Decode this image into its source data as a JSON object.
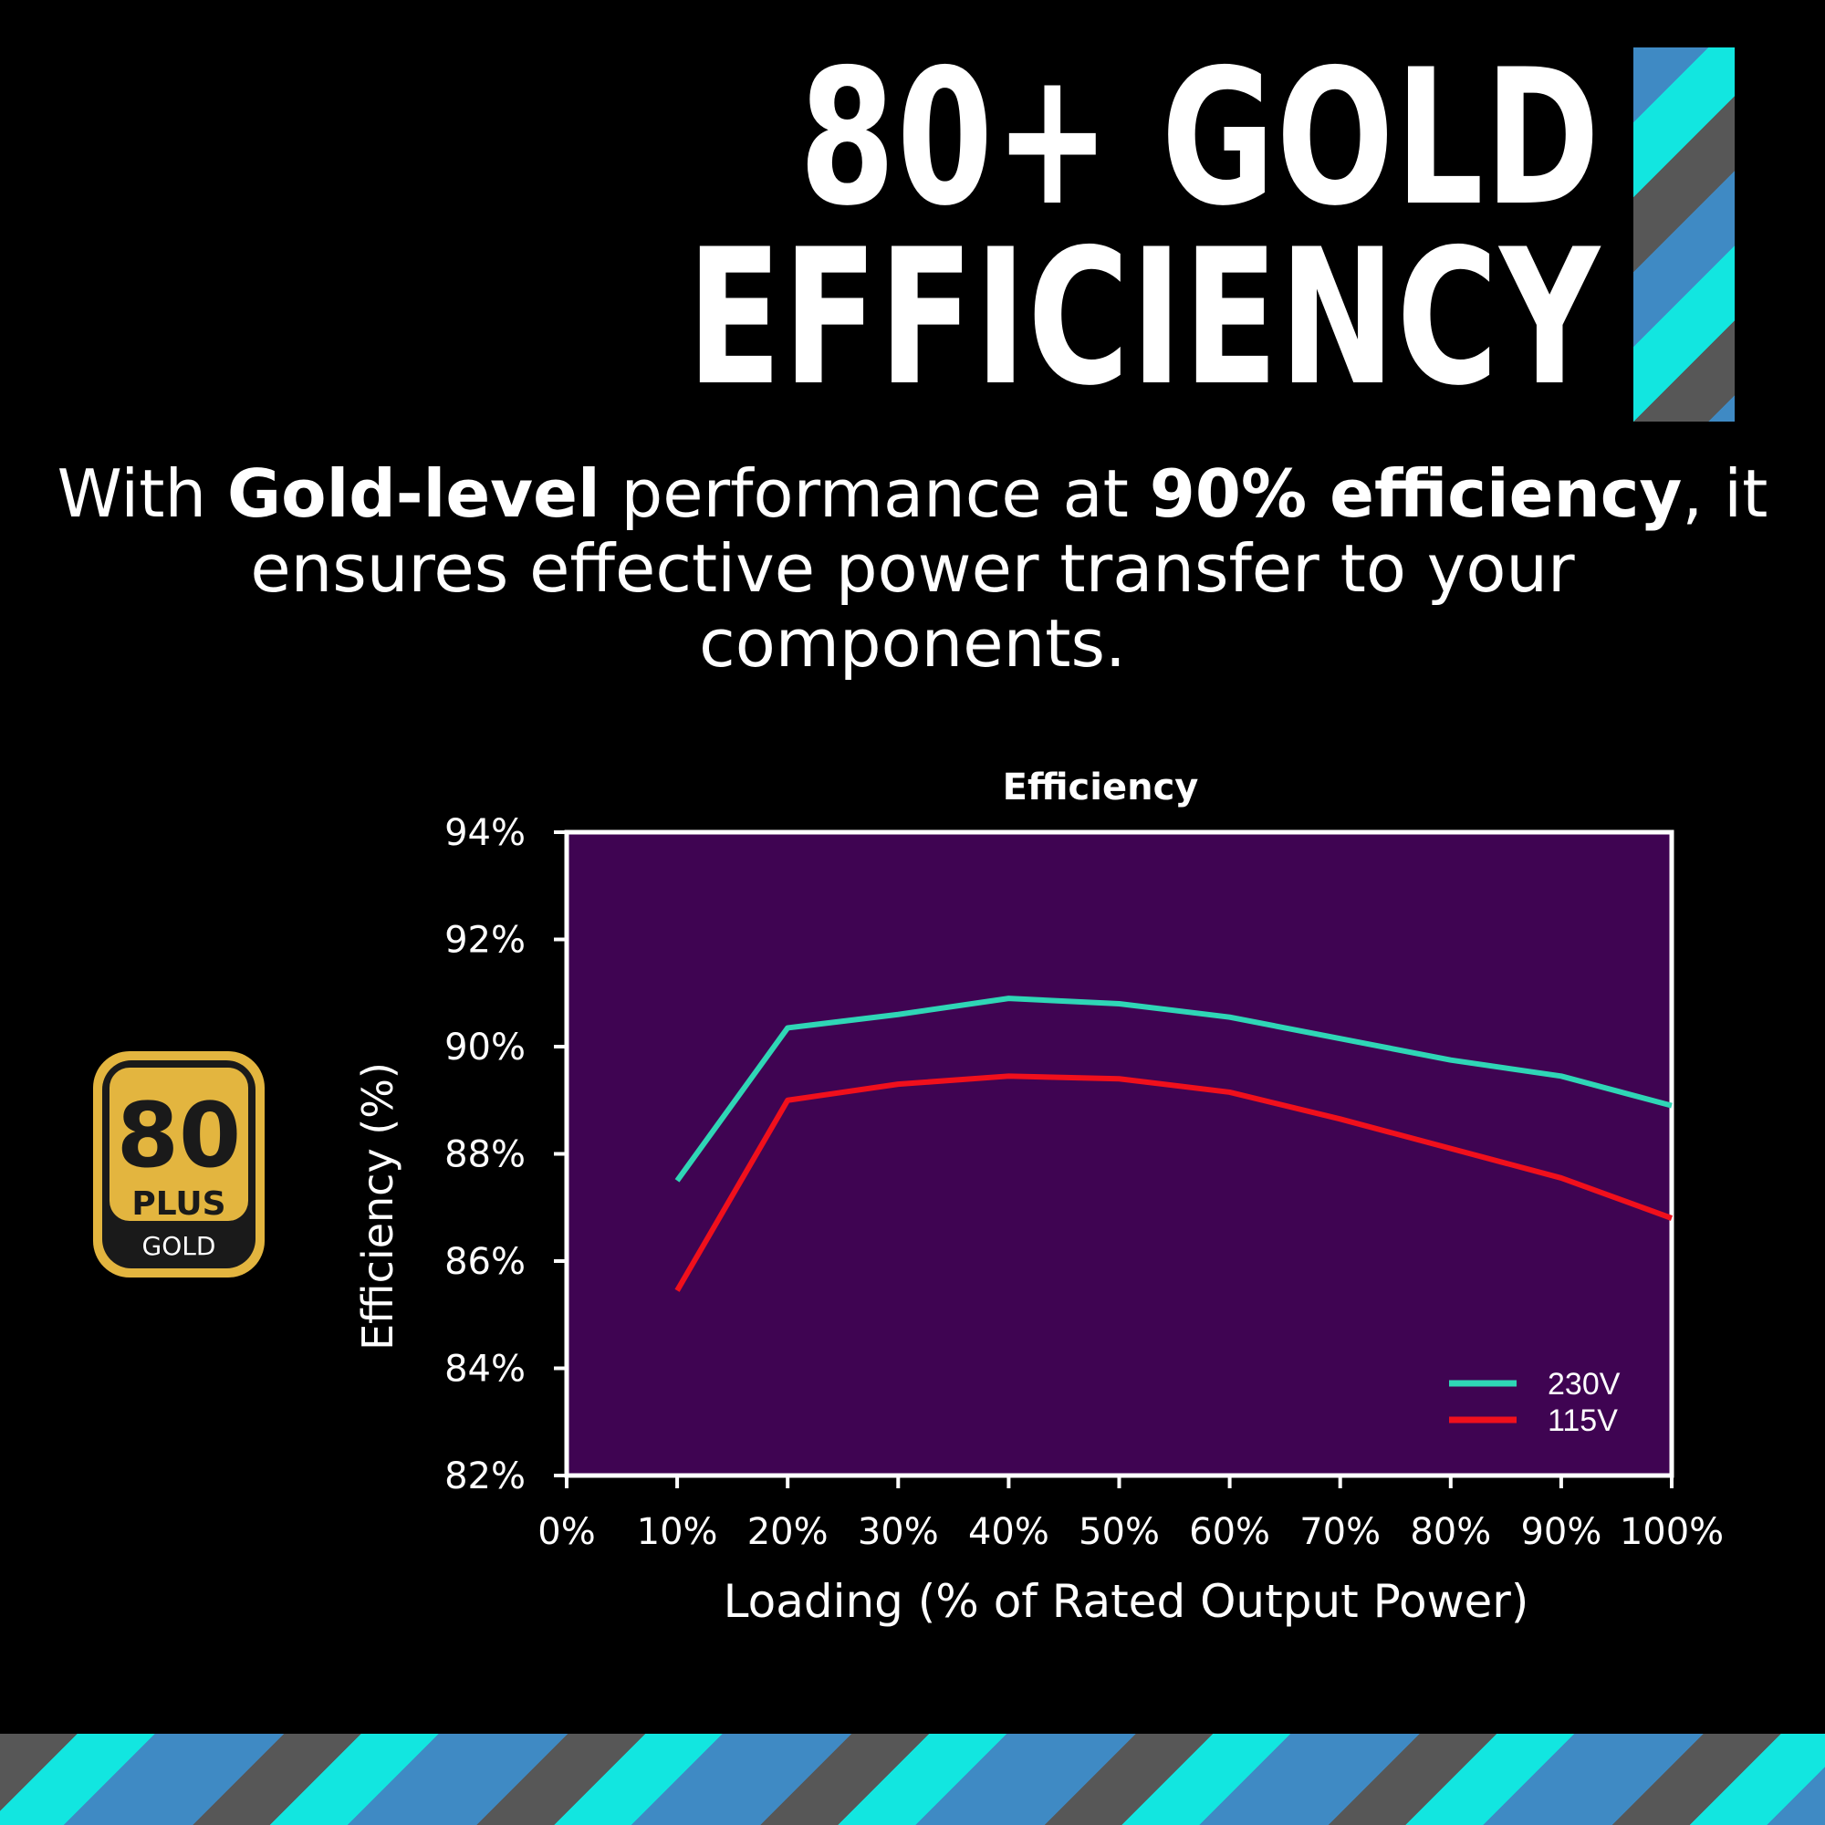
{
  "headline": {
    "line1": "80+ GOLD",
    "line2": "EFFICIENCY"
  },
  "description": {
    "t1": "With ",
    "b1": "Gold-level",
    "t2": " performance at ",
    "b2": "90% efficiency",
    "t3": ", it ensures effective power transfer to your components."
  },
  "badge": {
    "number": "80",
    "plus": "PLUS",
    "tier": "GOLD",
    "colors": {
      "gold": "#e3b53f",
      "dark": "#1a1a1a"
    }
  },
  "chart_data": {
    "type": "line",
    "title": "Efficiency",
    "xlabel": "Loading (% of Rated Output Power)",
    "ylabel": "Efficiency (%)",
    "x": [
      10,
      20,
      30,
      40,
      50,
      60,
      70,
      80,
      90,
      100
    ],
    "xlim": [
      0,
      100
    ],
    "ylim": [
      82,
      94
    ],
    "x_ticks": [
      "0%",
      "10%",
      "20%",
      "30%",
      "40%",
      "50%",
      "60%",
      "70%",
      "80%",
      "90%",
      "100%"
    ],
    "y_ticks": [
      "82%",
      "84%",
      "86%",
      "88%",
      "90%",
      "92%",
      "94%"
    ],
    "plot_background": "#3f0452",
    "legend_position": "bottom-right",
    "series": [
      {
        "name": "230V",
        "color": "#2fd6b6",
        "values": [
          87.5,
          90.35,
          90.6,
          90.9,
          90.8,
          90.55,
          90.15,
          89.75,
          89.45,
          88.9
        ]
      },
      {
        "name": "115V",
        "color": "#f0101c",
        "values": [
          85.45,
          89.0,
          89.3,
          89.45,
          89.4,
          89.15,
          88.65,
          88.1,
          87.55,
          86.8
        ]
      }
    ]
  }
}
